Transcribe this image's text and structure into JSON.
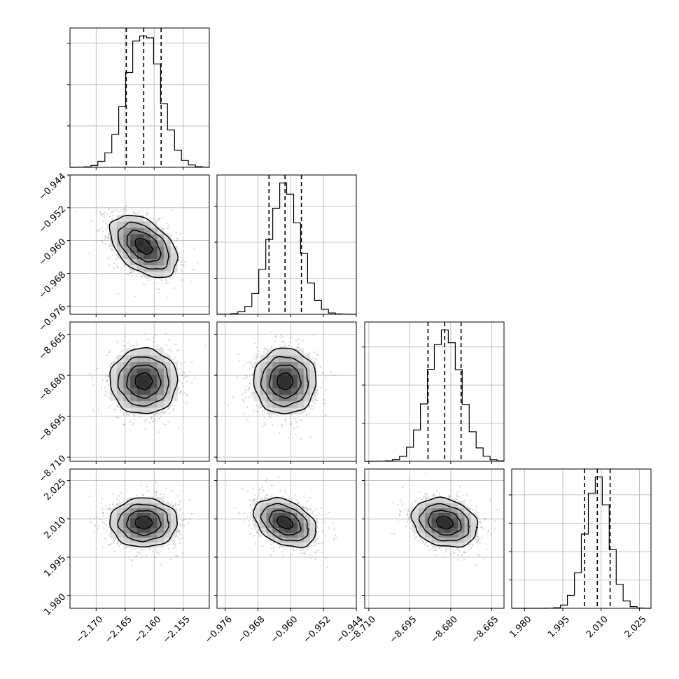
{
  "chart_data": {
    "type": "corner",
    "grid": true,
    "parameters": [
      {
        "range": [
          -2.1745,
          -2.1505
        ],
        "ticks": [
          -2.17,
          -2.165,
          -2.16,
          -2.155
        ],
        "tick_labels": [
          "−2.170",
          "−2.165",
          "−2.160",
          "−2.155"
        ],
        "quantiles": [
          -2.1648,
          -2.1618,
          -2.1588
        ],
        "peak": -2.1618,
        "sigma": 0.0029
      },
      {
        "range": [
          -0.978,
          -0.944
        ],
        "ticks": [
          -0.976,
          -0.968,
          -0.96,
          -0.952,
          -0.944
        ],
        "tick_labels": [
          "−0.976",
          "−0.968",
          "−0.960",
          "−0.952",
          "−0.944"
        ],
        "quantiles": [
          -0.9653,
          -0.9614,
          -0.9574
        ],
        "peak": -0.9614,
        "sigma": 0.0038
      },
      {
        "range": [
          -8.7115,
          -8.6605
        ],
        "ticks": [
          -8.71,
          -8.695,
          -8.68,
          -8.665
        ],
        "tick_labels": [
          "−8.710",
          "−8.695",
          "−8.680",
          "−8.665"
        ],
        "quantiles": [
          -8.6883,
          -8.6822,
          -8.6762
        ],
        "peak": -8.6822,
        "sigma": 0.006
      },
      {
        "range": [
          1.975,
          2.0295
        ],
        "ticks": [
          1.98,
          1.995,
          2.01,
          2.025
        ],
        "tick_labels": [
          "1.980",
          "1.995",
          "2.010",
          "2.025"
        ],
        "quantiles": [
          2.0035,
          2.0085,
          2.0135
        ],
        "peak": 2.0085,
        "sigma": 0.0048
      }
    ],
    "histogram_bins": 20,
    "correlations": [
      [
        1,
        -0.45,
        0.0,
        0.0
      ],
      [
        -0.45,
        1,
        0.0,
        -0.35
      ],
      [
        0.0,
        0.0,
        1,
        -0.2
      ],
      [
        0.0,
        -0.35,
        -0.2,
        1
      ]
    ],
    "contour_levels_sigma": [
      0.5,
      1.0,
      1.5,
      2.0
    ],
    "colors": {
      "line": "#000000",
      "grid": "#b0b0b0",
      "points": "#9a9a9a"
    }
  }
}
